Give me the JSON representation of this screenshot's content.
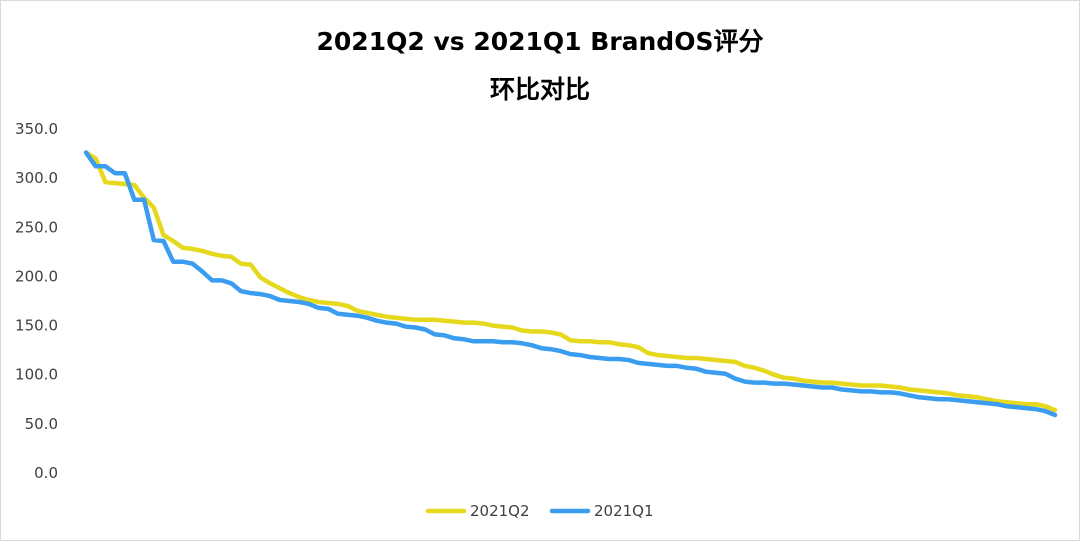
{
  "chart_data": {
    "type": "line",
    "title": "2021Q2 vs 2021Q1 BrandOS评分",
    "subtitle": "环比对比",
    "xlabel": "",
    "ylabel": "",
    "ylim": [
      0,
      350
    ],
    "yticks": [
      0,
      50,
      100,
      150,
      200,
      250,
      300,
      350
    ],
    "ytick_labels": [
      "0.0",
      "50.0",
      "100.0",
      "150.0",
      "200.0",
      "250.0",
      "300.0",
      "350.0"
    ],
    "grid": false,
    "legend": "bottom-center",
    "series": [
      {
        "name": "2021Q2",
        "color": "#e6d81c",
        "values": [
          326,
          320,
          296,
          295,
          294,
          293,
          280,
          270,
          242,
          236,
          229,
          228,
          226,
          223,
          221,
          220,
          213,
          212,
          199,
          193,
          188,
          183,
          179,
          176,
          174,
          173,
          172,
          170,
          165,
          163,
          161,
          159,
          158,
          157,
          156,
          156,
          156,
          155,
          154,
          153,
          153,
          152,
          150,
          149,
          148,
          145,
          144,
          144,
          143,
          141,
          135,
          134,
          134,
          133,
          133,
          131,
          130,
          128,
          122,
          120,
          119,
          118,
          117,
          117,
          116,
          115,
          114,
          113,
          109,
          107,
          104,
          100,
          97,
          96,
          94,
          93,
          92,
          92,
          91,
          90,
          89,
          89,
          89,
          88,
          87,
          85,
          84,
          83,
          82,
          81,
          79,
          78,
          77,
          75,
          73,
          72,
          71,
          70,
          70,
          68,
          64
        ]
      },
      {
        "name": "2021Q1",
        "color": "#3a9df0",
        "values": [
          326,
          312,
          312,
          305,
          305,
          278,
          278,
          237,
          236,
          215,
          215,
          213,
          205,
          196,
          196,
          193,
          185,
          183,
          182,
          180,
          176,
          175,
          174,
          172,
          168,
          167,
          162,
          161,
          160,
          158,
          155,
          153,
          152,
          149,
          148,
          146,
          141,
          140,
          137,
          136,
          134,
          134,
          134,
          133,
          133,
          132,
          130,
          127,
          126,
          124,
          121,
          120,
          118,
          117,
          116,
          116,
          115,
          112,
          111,
          110,
          109,
          109,
          107,
          106,
          103,
          102,
          101,
          96,
          93,
          92,
          92,
          91,
          91,
          90,
          89,
          88,
          87,
          87,
          85,
          84,
          83,
          83,
          82,
          82,
          81,
          79,
          77,
          76,
          75,
          75,
          74,
          73,
          72,
          71,
          70,
          68,
          67,
          66,
          65,
          63,
          59
        ]
      }
    ]
  }
}
